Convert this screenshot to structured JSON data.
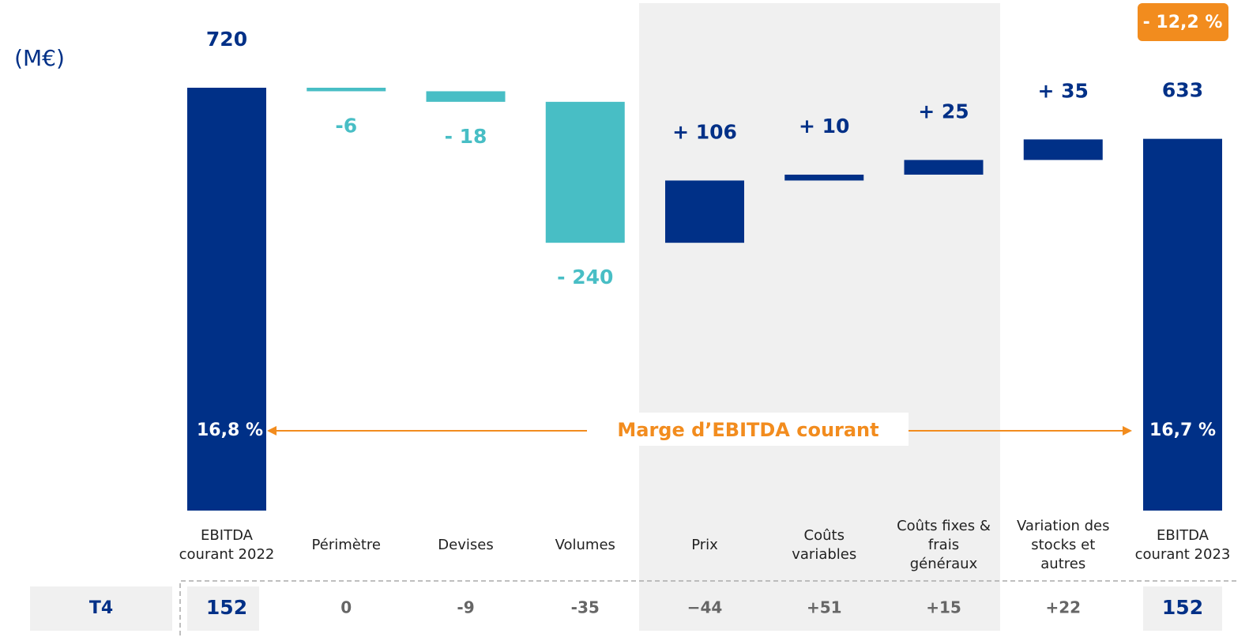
{
  "chart_data": {
    "type": "waterfall",
    "unit": "(M€)",
    "change_badge": "- 12,2 %",
    "categories": [
      "EBITDA courant 2022",
      "Périmètre",
      "Devises",
      "Volumes",
      "Prix",
      "Coûts variables",
      "Coûts fixes & frais généraux",
      "Variation des stocks et autres",
      "EBITDA courant 2023"
    ],
    "values": [
      720,
      -6,
      -18,
      -240,
      106,
      10,
      25,
      35,
      633
    ],
    "value_labels": [
      "720",
      "-6",
      "- 18",
      "- 240",
      "+ 106",
      "+ 10",
      "+ 25",
      "+ 35",
      "633"
    ],
    "colors": {
      "total": "#003087",
      "increase": "#003087",
      "decrease": "#48bec5"
    },
    "margin_label": "Marge d’EBITDA courant",
    "margin_start": "16,8 %",
    "margin_end": "16,7 %",
    "q4": {
      "label": "T4",
      "values": [
        "152",
        "0",
        "-9",
        "-35",
        "−44",
        "+51",
        "+15",
        "+22",
        "152"
      ]
    }
  }
}
